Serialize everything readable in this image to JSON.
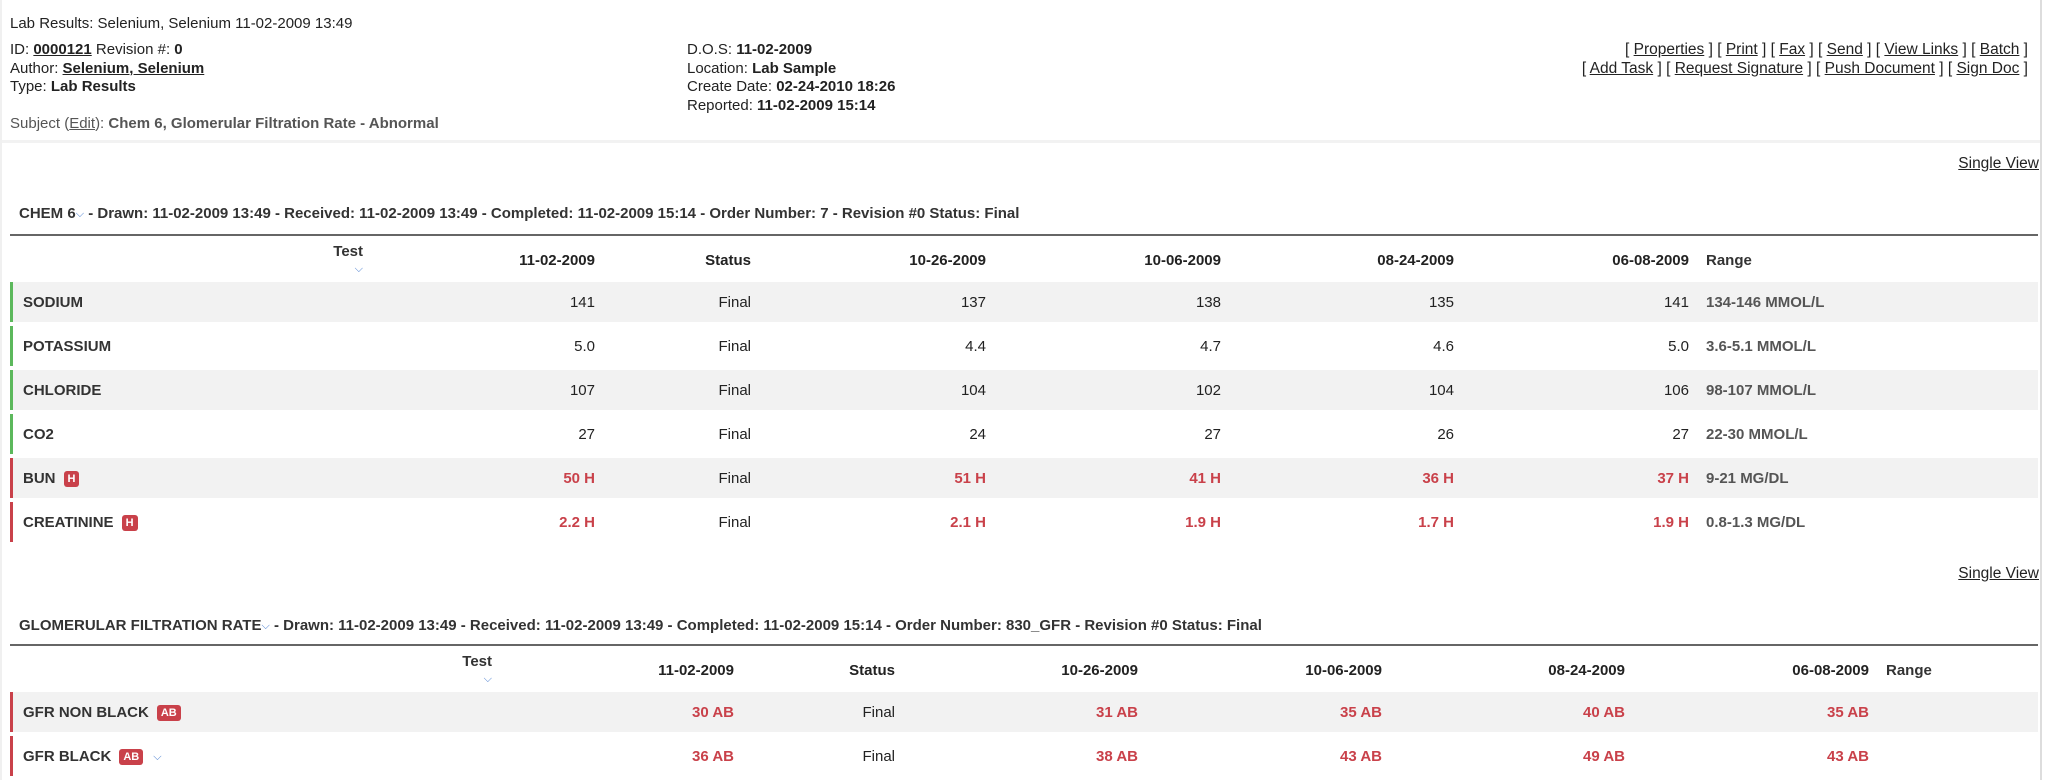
{
  "page_title": "Lab Results: Selenium, Selenium 11-02-2009 13:49",
  "meta": {
    "id_label": "ID:",
    "id": "0000121",
    "revision_label": "Revision #:",
    "revision": "0",
    "author_label": "Author:",
    "author": "Selenium, Selenium",
    "type_label": "Type:",
    "type": "Lab Results",
    "subject_label": "Subject (",
    "subject_edit": "Edit",
    "subject_close": "):",
    "subject": "Chem 6, Glomerular Filtration Rate - Abnormal",
    "dos_label": "D.O.S:",
    "dos": "11-02-2009",
    "location_label": "Location:",
    "location": "Lab Sample",
    "create_label": "Create Date:",
    "create": "02-24-2010 18:26",
    "reported_label": "Reported:",
    "reported": "11-02-2009 15:14"
  },
  "actions_row1": [
    "Properties",
    "Print",
    "Fax",
    "Send",
    "View Links",
    "Batch"
  ],
  "actions_row2": [
    "Add Task",
    "Request Signature",
    "Push Document",
    "Sign Doc"
  ],
  "single_view": "Single View",
  "colors": {
    "normal": "#5cb85c",
    "abnormal": "#c9414a",
    "band": "#f2f2f2"
  },
  "sections": [
    {
      "name": "CHEM 6",
      "info": " - Drawn: 11-02-2009 13:49 - Received: 11-02-2009 13:49 - Completed: 11-02-2009 15:14 - Order Number: 7 - Revision #0 Status: Final",
      "headers": [
        "Test",
        "11-02-2009",
        "Status",
        "10-26-2009",
        "10-06-2009",
        "08-24-2009",
        "06-08-2009",
        "Range"
      ],
      "rows": [
        {
          "test": "SODIUM",
          "flag": "",
          "abnormal": false,
          "values": [
            "141",
            "Final",
            "137",
            "138",
            "135",
            "141"
          ],
          "range": "134-146 MMOL/L"
        },
        {
          "test": "POTASSIUM",
          "flag": "",
          "abnormal": false,
          "values": [
            "5.0",
            "Final",
            "4.4",
            "4.7",
            "4.6",
            "5.0"
          ],
          "range": "3.6-5.1 MMOL/L"
        },
        {
          "test": "CHLORIDE",
          "flag": "",
          "abnormal": false,
          "values": [
            "107",
            "Final",
            "104",
            "102",
            "104",
            "106"
          ],
          "range": "98-107 MMOL/L"
        },
        {
          "test": "CO2",
          "flag": "",
          "abnormal": false,
          "values": [
            "27",
            "Final",
            "24",
            "27",
            "26",
            "27"
          ],
          "range": "22-30 MMOL/L"
        },
        {
          "test": "BUN",
          "flag": "H",
          "abnormal": true,
          "values": [
            "50 H",
            "Final",
            "51 H",
            "41 H",
            "36 H",
            "37 H"
          ],
          "range": "9-21 MG/DL"
        },
        {
          "test": "CREATININE",
          "flag": "H",
          "abnormal": true,
          "values": [
            "2.2 H",
            "Final",
            "2.1 H",
            "1.9 H",
            "1.7 H",
            "1.9 H"
          ],
          "range": "0.8-1.3 MG/DL"
        }
      ]
    },
    {
      "name": "GLOMERULAR FILTRATION RATE",
      "info": " - Drawn: 11-02-2009 13:49 - Received: 11-02-2009 13:49 - Completed: 11-02-2009 15:14 - Order Number: 830_GFR - Revision #0 Status: Final",
      "headers": [
        "Test",
        "11-02-2009",
        "Status",
        "10-26-2009",
        "10-06-2009",
        "08-24-2009",
        "06-08-2009",
        "Range"
      ],
      "rows": [
        {
          "test": "GFR NON BLACK",
          "flag": "AB",
          "abnormal": true,
          "values": [
            "30 AB",
            "Final",
            "31 AB",
            "35 AB",
            "40 AB",
            "35 AB"
          ],
          "range": ""
        },
        {
          "test": "GFR BLACK",
          "flag": "AB",
          "abnormal": true,
          "expand": true,
          "values": [
            "36 AB",
            "Final",
            "38 AB",
            "43 AB",
            "49 AB",
            "43 AB"
          ],
          "range": ""
        }
      ]
    }
  ]
}
